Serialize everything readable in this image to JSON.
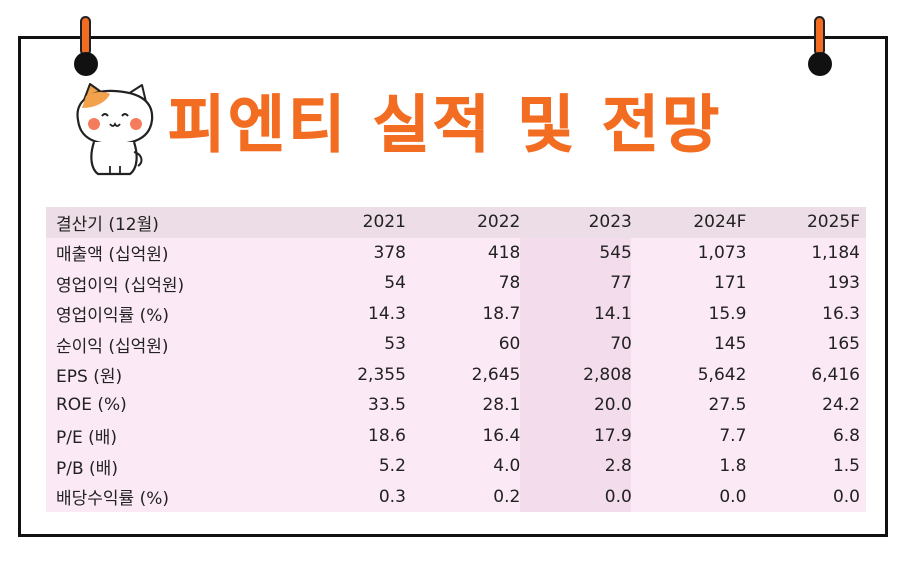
{
  "title": "피엔티 실적 및 전망",
  "colors": {
    "accent": "#f26d22",
    "table_bg": "#fbeaf6",
    "header_bg": "#ecdde6",
    "frame": "#111111"
  },
  "decor": {
    "mascot": "cat-mascot-icon",
    "clips": "binder-clip-icon"
  },
  "table": {
    "headers": [
      "결산기 (12월)",
      "2021",
      "2022",
      "2023",
      "2024F",
      "2025F"
    ],
    "rows": [
      [
        "매출액 (십억원)",
        "378",
        "418",
        "545",
        "1,073",
        "1,184"
      ],
      [
        "영업이익 (십억원)",
        "54",
        "78",
        "77",
        "171",
        "193"
      ],
      [
        "영업이익률 (%)",
        "14.3",
        "18.7",
        "14.1",
        "15.9",
        "16.3"
      ],
      [
        "순이익 (십억원)",
        "53",
        "60",
        "70",
        "145",
        "165"
      ],
      [
        "EPS (원)",
        "2,355",
        "2,645",
        "2,808",
        "5,642",
        "6,416"
      ],
      [
        "ROE (%)",
        "33.5",
        "28.1",
        "20.0",
        "27.5",
        "24.2"
      ],
      [
        "P/E (배)",
        "18.6",
        "16.4",
        "17.9",
        "7.7",
        "6.8"
      ],
      [
        "P/B (배)",
        "5.2",
        "4.0",
        "2.8",
        "1.8",
        "1.5"
      ],
      [
        "배당수익률 (%)",
        "0.3",
        "0.2",
        "0.0",
        "0.0",
        "0.0"
      ]
    ]
  }
}
